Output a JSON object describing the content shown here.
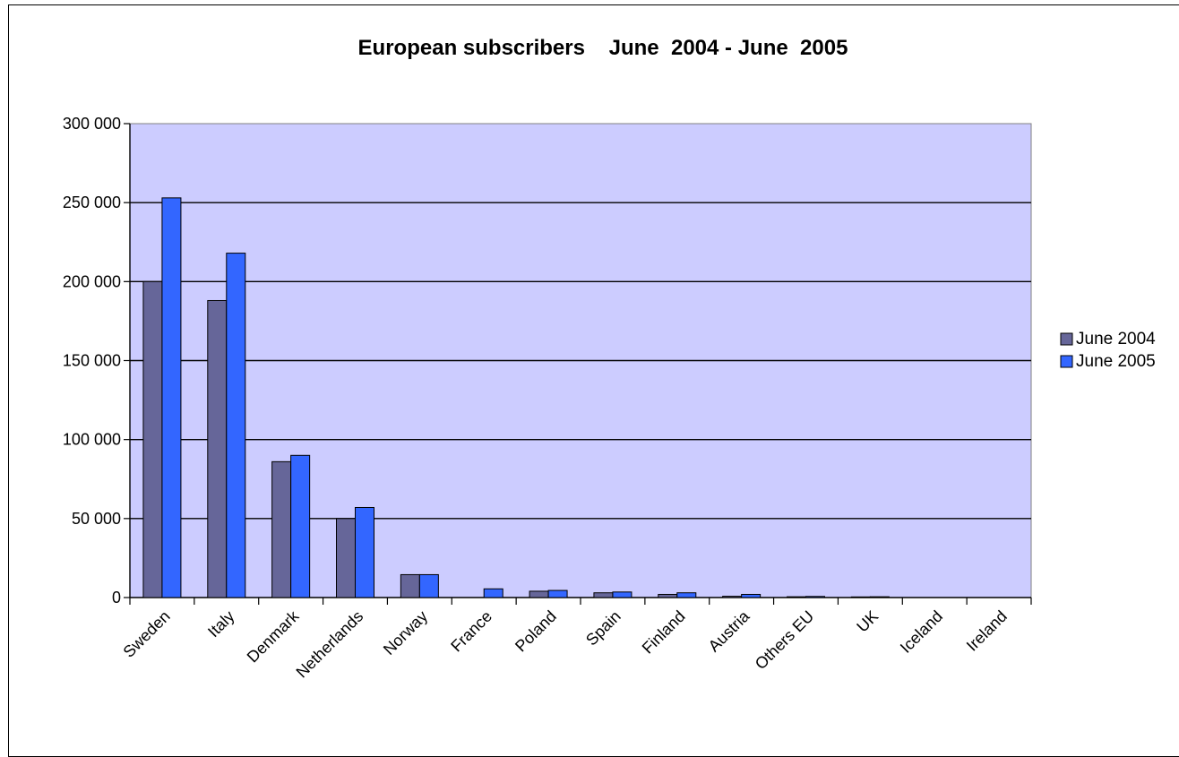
{
  "chart_data": {
    "type": "bar",
    "title": "European subscribers    June  2004 - June  2005",
    "xlabel": "",
    "ylabel": "",
    "ylim": [
      0,
      300000
    ],
    "yticks": [
      0,
      50000,
      100000,
      150000,
      200000,
      250000,
      300000
    ],
    "ytick_labels": [
      "0",
      "50 000",
      "100 000",
      "150 000",
      "200 000",
      "250 000",
      "300 000"
    ],
    "grid": true,
    "legend_position": "right",
    "categories": [
      "Sweden",
      "Italy",
      "Denmark",
      "Netherlands",
      "Norway",
      "France",
      "Poland",
      "Spain",
      "Finland",
      "Austria",
      "Others EU",
      "UK",
      "Iceland",
      "Ireland"
    ],
    "series": [
      {
        "name": "June 2004",
        "color": "#666699",
        "values": [
          200000,
          188000,
          86000,
          50000,
          14500,
          0,
          4000,
          3000,
          2000,
          800,
          500,
          400,
          0,
          0
        ]
      },
      {
        "name": "June 2005",
        "color": "#3366FF",
        "values": [
          253000,
          218000,
          90000,
          57000,
          14500,
          5500,
          4500,
          3500,
          3000,
          2000,
          700,
          500,
          0,
          0
        ]
      }
    ],
    "plot_background": "#CCCCFF"
  }
}
